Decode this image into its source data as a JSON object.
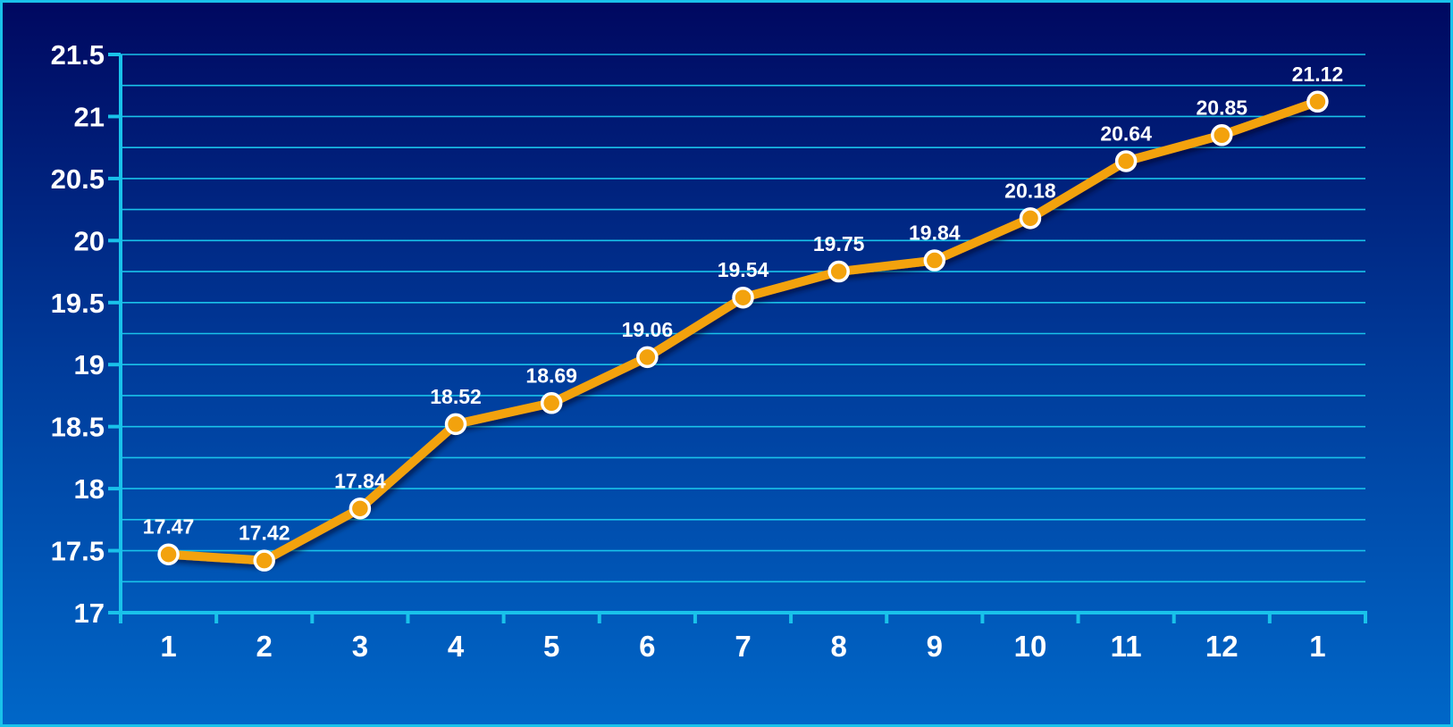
{
  "chart_data": {
    "type": "line",
    "categories": [
      "1",
      "2",
      "3",
      "4",
      "5",
      "6",
      "7",
      "8",
      "9",
      "10",
      "11",
      "12",
      "1"
    ],
    "series": [
      {
        "values": [
          17.47,
          17.42,
          17.84,
          18.52,
          18.69,
          19.06,
          19.54,
          19.75,
          19.84,
          20.18,
          20.64,
          20.85,
          21.12
        ]
      }
    ],
    "value_labels": [
      "17.47",
      "17.42",
      "17.84",
      "18.52",
      "18.69",
      "19.06",
      "19.54",
      "19.75",
      "19.84",
      "20.18",
      "20.64",
      "20.85",
      "21.12"
    ],
    "y_ticks": [
      "17",
      "17.5",
      "18",
      "18.5",
      "19",
      "19.5",
      "20",
      "20.5",
      "21",
      "21.5"
    ],
    "ylim": [
      17,
      21.5
    ],
    "grid": true,
    "title": "",
    "xlabel": "",
    "ylabel": "",
    "colors": {
      "line": "#f3a20d",
      "marker_fill": "#f3a20d",
      "marker_stroke": "#ffffff",
      "axis": "#19c2ea",
      "grid": "#19c2ea",
      "text": "#ffffff"
    }
  }
}
